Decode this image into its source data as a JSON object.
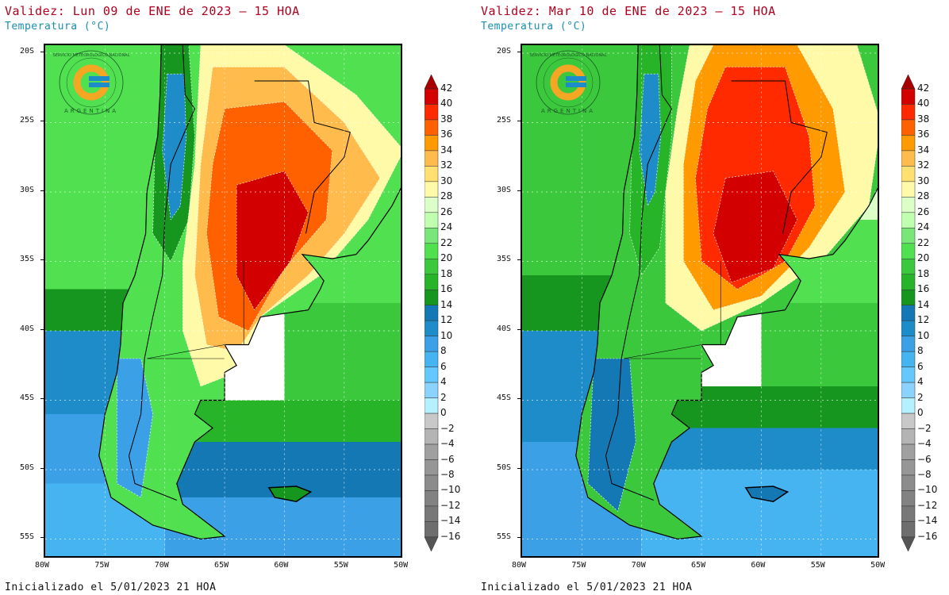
{
  "panels": [
    {
      "title": "Validez: Lun 09 de ENE de 2023 – 15 HOA",
      "subtitle": "Temperatura (°C)",
      "footer": "Inicializado el 5/01/2023 21 HOA"
    },
    {
      "title": "Validez: Mar 10 de ENE de 2023 – 15 HOA",
      "subtitle": "Temperatura (°C)",
      "footer": "Inicializado el 5/01/2023 21 HOA"
    }
  ],
  "lat_ticks": [
    "20S",
    "25S",
    "30S",
    "35S",
    "40S",
    "45S",
    "50S",
    "55S"
  ],
  "lon_ticks": [
    "80W",
    "75W",
    "70W",
    "65W",
    "60W",
    "55W",
    "50W"
  ],
  "logo": {
    "text_top": "SERVICIO METEOROLOGICO NACIONAL",
    "text_bottom": "ARGENTINA"
  },
  "colorbar": {
    "unit": "°C",
    "labels": [
      "42",
      "40",
      "38",
      "36",
      "34",
      "32",
      "30",
      "28",
      "26",
      "24",
      "22",
      "20",
      "18",
      "16",
      "14",
      "12",
      "10",
      "8",
      "6",
      "4",
      "2",
      "0",
      "−2",
      "−4",
      "−6",
      "−8",
      "−10",
      "−12",
      "−14",
      "−16"
    ],
    "colors": [
      "#a80000",
      "#d20000",
      "#ff2a00",
      "#ff6000",
      "#ff9a00",
      "#ffbb4c",
      "#ffe070",
      "#fffaa8",
      "#dcffc8",
      "#c0ffb0",
      "#78e678",
      "#50e050",
      "#3cc83c",
      "#28b428",
      "#16961e",
      "#1478b4",
      "#1e8cc8",
      "#3ca0e6",
      "#46b4f0",
      "#64c8ff",
      "#8cd2ff",
      "#b4f0ff",
      "#c8c8c8",
      "#b4b4b4",
      "#a0a0a0",
      "#969696",
      "#8c8c8c",
      "#828282",
      "#787878",
      "#6e6e6e",
      "#555555"
    ]
  }
}
